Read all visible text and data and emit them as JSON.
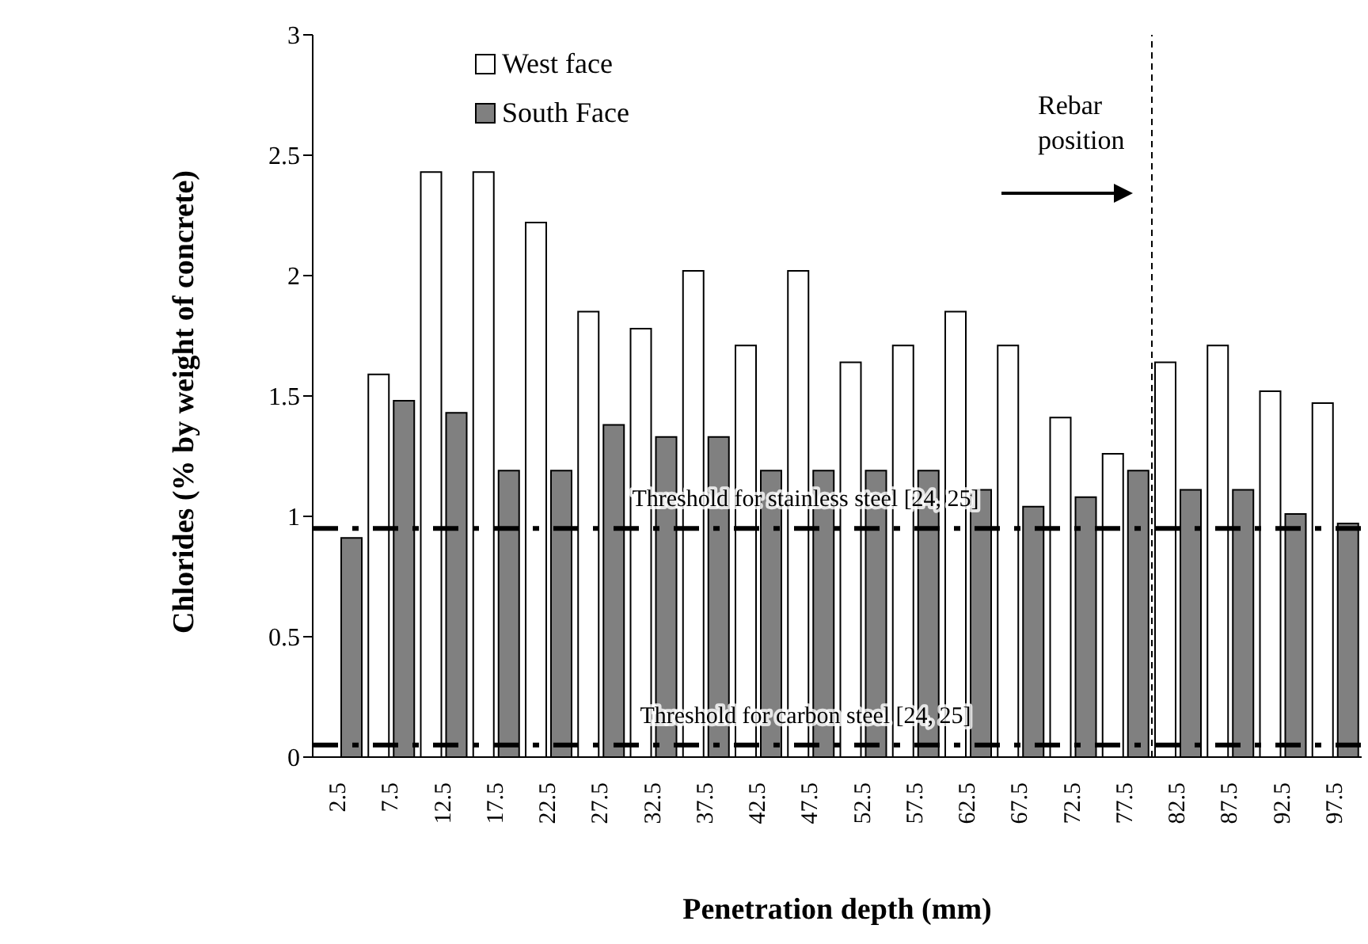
{
  "chart_data": {
    "type": "bar",
    "xlabel": "Penetration depth (mm)",
    "ylabel": "Chlorides (%  by weight of concrete)",
    "x": [
      2.5,
      7.5,
      12.5,
      17.5,
      22.5,
      27.5,
      32.5,
      37.5,
      42.5,
      47.5,
      52.5,
      57.5,
      62.5,
      67.5,
      72.5,
      77.5,
      82.5,
      87.5,
      92.5,
      97.5
    ],
    "xlim": [
      0,
      100
    ],
    "xticks": [
      2.5,
      7.5,
      12.5,
      17.5,
      22.5,
      27.5,
      32.5,
      37.5,
      42.5,
      47.5,
      52.5,
      57.5,
      62.5,
      67.5,
      72.5,
      77.5,
      82.5,
      87.5,
      92.5,
      97.5
    ],
    "ylim": [
      0,
      3
    ],
    "yticks": [
      0,
      0.5,
      1,
      1.5,
      2,
      2.5,
      3
    ],
    "series": [
      {
        "name": "West face",
        "color": "#ffffff",
        "values": [
          null,
          1.59,
          2.43,
          2.43,
          2.22,
          1.85,
          1.78,
          2.02,
          1.71,
          2.02,
          1.64,
          1.71,
          1.85,
          1.71,
          1.41,
          1.26,
          1.64,
          1.71,
          1.52,
          1.47
        ]
      },
      {
        "name": "South Face",
        "color": "#808080",
        "values": [
          0.91,
          1.48,
          1.43,
          1.19,
          1.19,
          1.38,
          1.33,
          1.33,
          1.19,
          1.19,
          1.19,
          1.19,
          1.11,
          1.04,
          1.08,
          1.19,
          1.11,
          1.11,
          1.01,
          0.97
        ]
      }
    ],
    "ref_lines": [
      {
        "axis": "y",
        "value": 0.95,
        "label": "Threshold for stainless steel  [24, 25]",
        "line_style": "dashdot",
        "color": "#000000"
      },
      {
        "axis": "y",
        "value": 0.05,
        "label": "Threshold for carbon steel  [24, 25]",
        "line_style": "dashdot",
        "color": "#000000"
      },
      {
        "axis": "x",
        "value": 80,
        "label": "Rebar position",
        "line_style": "dashed",
        "color": "#000000"
      }
    ],
    "legend": "top left"
  }
}
